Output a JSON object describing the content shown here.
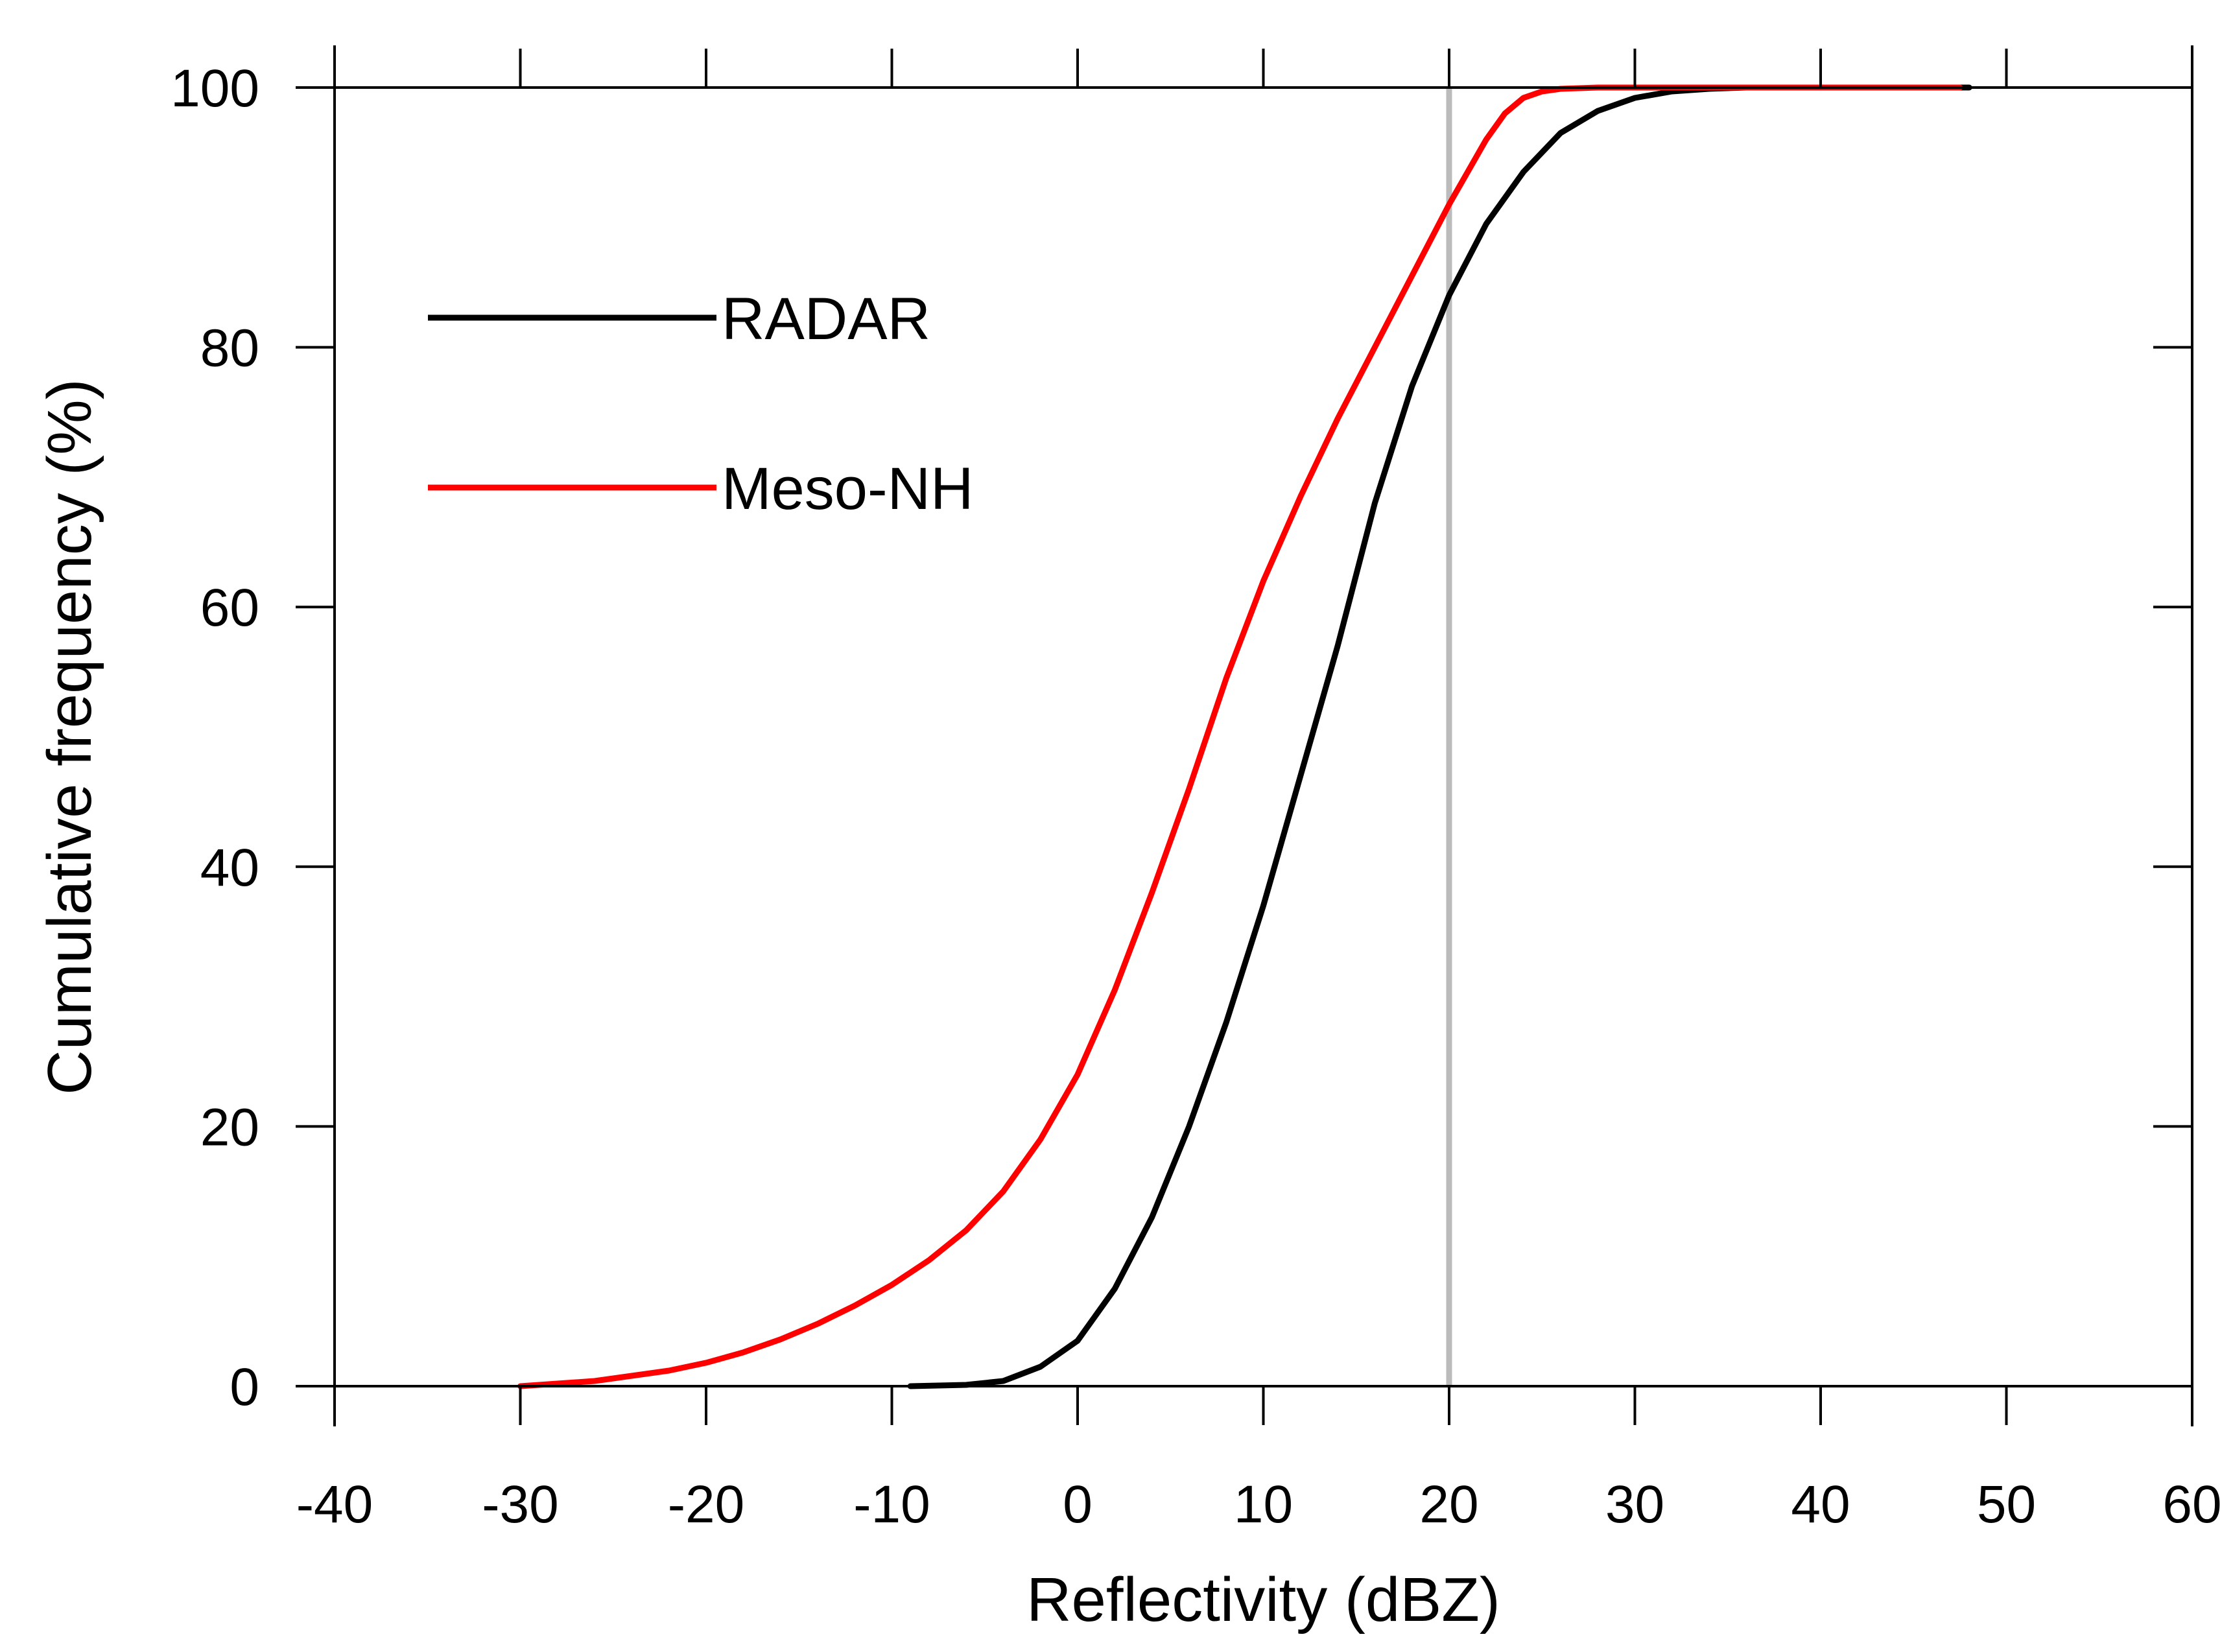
{
  "chart_data": {
    "type": "line",
    "title": "",
    "xlabel": "Reflectivity (dBZ)",
    "ylabel": "Cumulative frequency (%)",
    "xlim": [
      -40,
      60
    ],
    "ylim": [
      0,
      100
    ],
    "x_ticks": [
      -40,
      -30,
      -20,
      -10,
      0,
      10,
      20,
      30,
      40,
      50,
      60
    ],
    "y_ticks": [
      0,
      20,
      40,
      60,
      80,
      100
    ],
    "x_tick_labels": [
      "-40",
      "-30",
      "-20",
      "-10",
      "0",
      "10",
      "20",
      "30",
      "40",
      "50",
      "60"
    ],
    "y_tick_labels": [
      "0",
      "20",
      "40",
      "60",
      "80",
      "100"
    ],
    "reference_line": {
      "x": 20,
      "color": "#bbbbbb"
    },
    "legend_position": "upper-left",
    "series": [
      {
        "name": "RADAR",
        "color": "#000000",
        "x": [
          -9,
          -6,
          -4,
          -2,
          0,
          2,
          4,
          6,
          8,
          10,
          12,
          14,
          16,
          18,
          20,
          22,
          24,
          26,
          28,
          30,
          32,
          34,
          36,
          38,
          40,
          44,
          48
        ],
        "y": [
          0,
          0.1,
          0.4,
          1.5,
          3.5,
          7.5,
          13,
          20,
          28,
          37,
          47,
          57,
          68,
          77,
          84,
          89.5,
          93.5,
          96.5,
          98.2,
          99.2,
          99.7,
          99.9,
          100,
          100,
          100,
          100,
          100
        ]
      },
      {
        "name": "Meso-NH",
        "color": "#ff0000",
        "x": [
          -30,
          -26,
          -22,
          -20,
          -18,
          -16,
          -14,
          -12,
          -10,
          -8,
          -6,
          -4,
          -2,
          0,
          2,
          4,
          6,
          8,
          10,
          12,
          14,
          16,
          18,
          20,
          22,
          23,
          24,
          25,
          26,
          28,
          32,
          36,
          40,
          47.5
        ],
        "y": [
          0,
          0.4,
          1.2,
          1.8,
          2.6,
          3.6,
          4.8,
          6.2,
          7.8,
          9.7,
          12,
          15,
          19,
          24,
          30.5,
          38,
          46,
          54.5,
          62,
          68.5,
          74.5,
          80,
          85.5,
          91,
          96,
          98,
          99.2,
          99.7,
          99.9,
          100,
          100,
          100,
          100,
          100
        ]
      }
    ]
  }
}
